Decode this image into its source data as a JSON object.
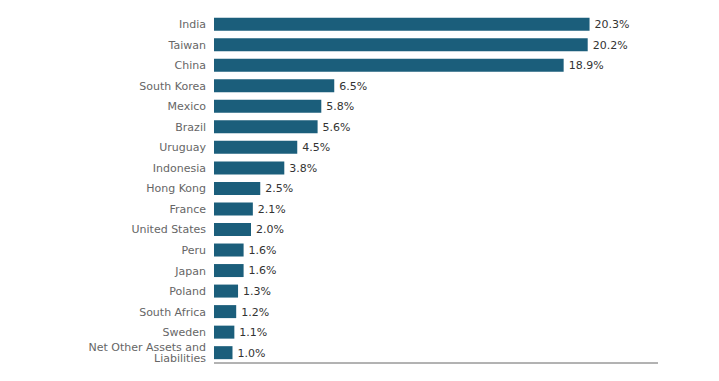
{
  "chart_data": {
    "type": "bar",
    "orientation": "horizontal",
    "categories": [
      "Net Other Assets and Liabilities",
      "Sweden",
      "South Africa",
      "Poland",
      "Japan",
      "Peru",
      "United States",
      "France",
      "Hong Kong",
      "Indonesia",
      "Uruguay",
      "Brazil",
      "Mexico",
      "South Korea",
      "China",
      "Taiwan",
      "India"
    ],
    "values": [
      1.0,
      1.1,
      1.2,
      1.3,
      1.6,
      1.6,
      2.0,
      2.1,
      2.5,
      3.8,
      4.5,
      5.6,
      5.8,
      6.5,
      18.9,
      20.2,
      20.3
    ],
    "value_labels": [
      "1.0%",
      "1.1%",
      "1.2%",
      "1.3%",
      "1.6%",
      "1.6%",
      "2.0%",
      "2.1%",
      "2.5%",
      "3.8%",
      "4.5%",
      "5.6%",
      "5.8%",
      "6.5%",
      "18.9%",
      "20.2%",
      "20.3%"
    ],
    "data_labels": true,
    "color": "#1b5e7b",
    "xlim": [
      0,
      24
    ],
    "tick_labels": "y",
    "grid": false
  }
}
